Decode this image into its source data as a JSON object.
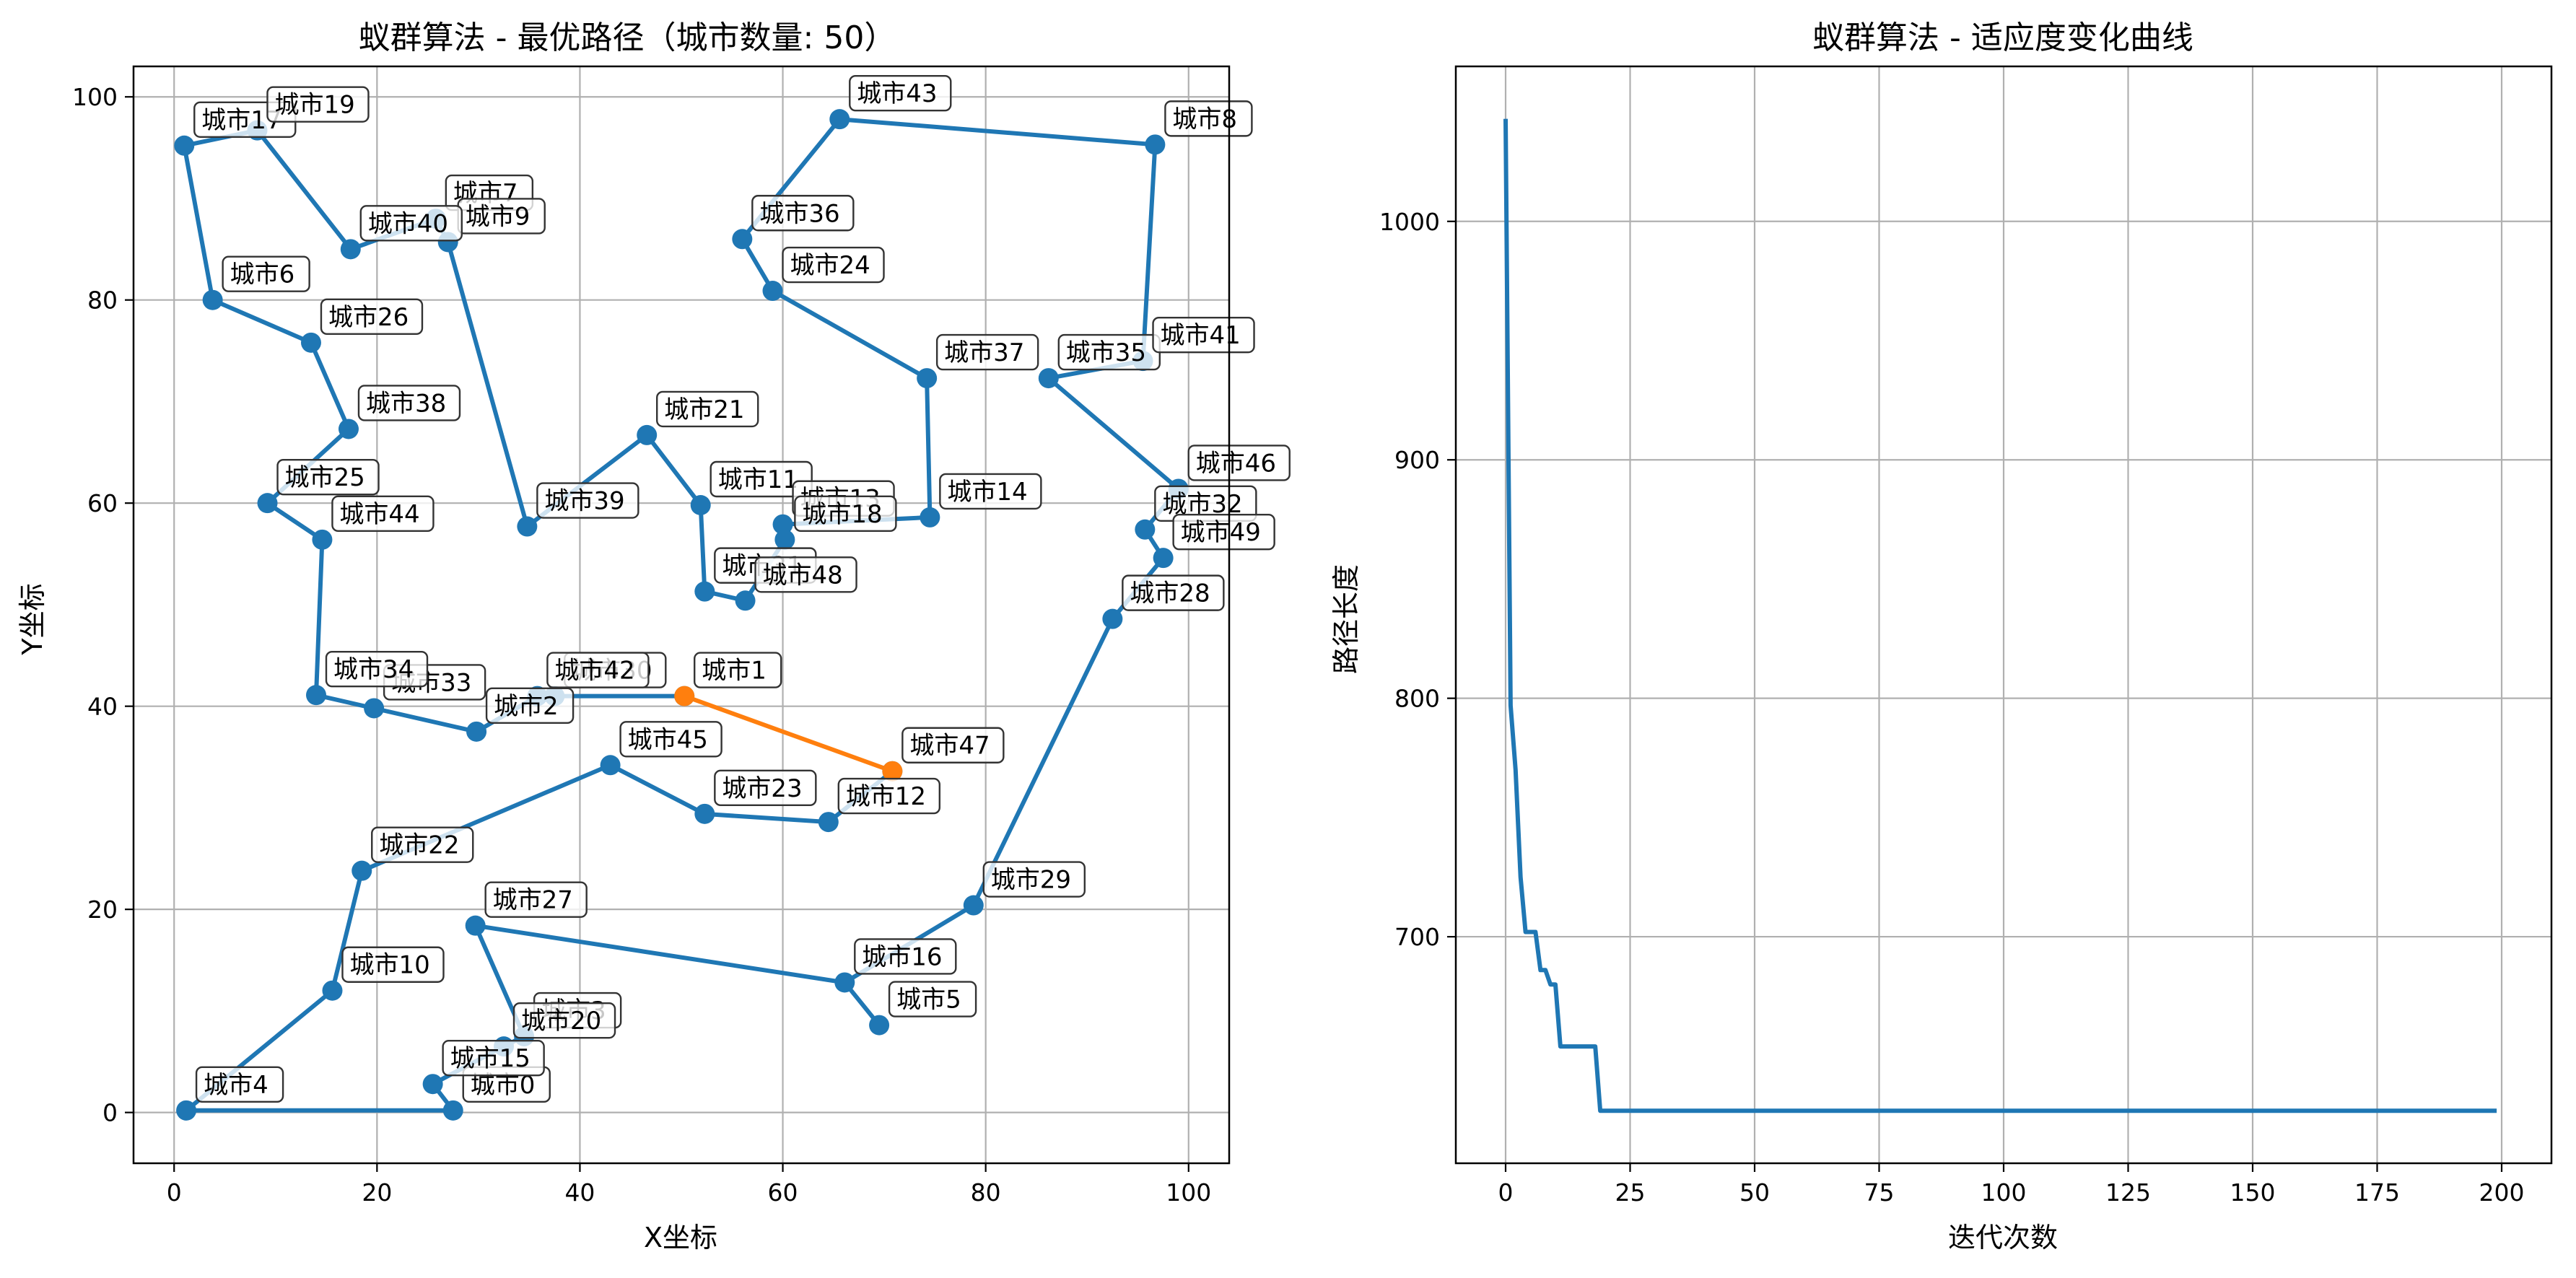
{
  "chart_data": [
    {
      "type": "line",
      "title": "蚁群算法 - 最优路径（城市数量: 50）",
      "xlabel": "X坐标",
      "ylabel": "Y坐标",
      "xlim": [
        -4,
        104
      ],
      "ylim": [
        -5,
        103
      ],
      "xticks": [
        0,
        20,
        40,
        60,
        80,
        100
      ],
      "yticks": [
        0,
        20,
        40,
        60,
        80,
        100
      ],
      "grid": true,
      "label_prefix": "城市",
      "route_color": "#1f77b4",
      "closing_color": "#ff7f0e",
      "cities": [
        {
          "id": 0,
          "x": 27.5,
          "y": 0.2
        },
        {
          "id": 1,
          "x": 50.3,
          "y": 41.0
        },
        {
          "id": 2,
          "x": 29.8,
          "y": 37.5
        },
        {
          "id": 3,
          "x": 34.5,
          "y": 7.5
        },
        {
          "id": 4,
          "x": 1.2,
          "y": 0.2
        },
        {
          "id": 5,
          "x": 69.5,
          "y": 8.6
        },
        {
          "id": 6,
          "x": 3.8,
          "y": 80.0
        },
        {
          "id": 7,
          "x": 25.8,
          "y": 88.0
        },
        {
          "id": 8,
          "x": 96.7,
          "y": 95.3
        },
        {
          "id": 9,
          "x": 27.0,
          "y": 85.7
        },
        {
          "id": 10,
          "x": 15.6,
          "y": 12.0
        },
        {
          "id": 11,
          "x": 51.9,
          "y": 59.8
        },
        {
          "id": 12,
          "x": 64.5,
          "y": 28.6
        },
        {
          "id": 13,
          "x": 60.0,
          "y": 57.9
        },
        {
          "id": 14,
          "x": 74.5,
          "y": 58.6
        },
        {
          "id": 15,
          "x": 25.5,
          "y": 2.8
        },
        {
          "id": 16,
          "x": 66.1,
          "y": 12.8
        },
        {
          "id": 17,
          "x": 1.0,
          "y": 95.2
        },
        {
          "id": 18,
          "x": 60.2,
          "y": 56.4
        },
        {
          "id": 19,
          "x": 8.2,
          "y": 96.7
        },
        {
          "id": 20,
          "x": 32.5,
          "y": 6.5
        },
        {
          "id": 21,
          "x": 46.6,
          "y": 66.7
        },
        {
          "id": 22,
          "x": 18.5,
          "y": 23.8
        },
        {
          "id": 23,
          "x": 52.3,
          "y": 29.4
        },
        {
          "id": 24,
          "x": 59.0,
          "y": 80.9
        },
        {
          "id": 25,
          "x": 9.2,
          "y": 60.0
        },
        {
          "id": 26,
          "x": 13.5,
          "y": 75.8
        },
        {
          "id": 27,
          "x": 29.7,
          "y": 18.4
        },
        {
          "id": 28,
          "x": 92.5,
          "y": 48.6
        },
        {
          "id": 29,
          "x": 78.8,
          "y": 20.4
        },
        {
          "id": 30,
          "x": 37.5,
          "y": 41.0
        },
        {
          "id": 31,
          "x": 52.3,
          "y": 51.3
        },
        {
          "id": 32,
          "x": 95.7,
          "y": 57.4
        },
        {
          "id": 33,
          "x": 19.7,
          "y": 39.8
        },
        {
          "id": 34,
          "x": 14.0,
          "y": 41.1
        },
        {
          "id": 35,
          "x": 86.2,
          "y": 72.3
        },
        {
          "id": 36,
          "x": 56.0,
          "y": 86.0
        },
        {
          "id": 37,
          "x": 74.2,
          "y": 72.3
        },
        {
          "id": 38,
          "x": 17.2,
          "y": 67.3
        },
        {
          "id": 39,
          "x": 34.8,
          "y": 57.7
        },
        {
          "id": 40,
          "x": 17.4,
          "y": 85.0
        },
        {
          "id": 41,
          "x": 95.5,
          "y": 74.0
        },
        {
          "id": 42,
          "x": 35.8,
          "y": 41.0
        },
        {
          "id": 43,
          "x": 65.6,
          "y": 97.8
        },
        {
          "id": 44,
          "x": 14.6,
          "y": 56.4
        },
        {
          "id": 45,
          "x": 43.0,
          "y": 34.2
        },
        {
          "id": 46,
          "x": 99.0,
          "y": 61.4
        },
        {
          "id": 47,
          "x": 70.8,
          "y": 33.6
        },
        {
          "id": 48,
          "x": 56.3,
          "y": 50.4
        },
        {
          "id": 49,
          "x": 97.5,
          "y": 54.6
        }
      ],
      "route": [
        1,
        30,
        42,
        2,
        33,
        34,
        44,
        25,
        38,
        26,
        6,
        17,
        19,
        40,
        7,
        9,
        39,
        21,
        11,
        31,
        48,
        18,
        13,
        14,
        37,
        24,
        36,
        43,
        8,
        41,
        35,
        46,
        32,
        49,
        28,
        29,
        16,
        5,
        16,
        27,
        3,
        20,
        15,
        0,
        4,
        10,
        22,
        45,
        23,
        12,
        47
      ],
      "closing_segment": [
        47,
        1
      ]
    },
    {
      "type": "line",
      "title": "蚁群算法 - 适应度变化曲线",
      "xlabel": "迭代次数",
      "ylabel": "路径长度",
      "xlim": [
        -10,
        210
      ],
      "ylim": [
        605,
        1065
      ],
      "xticks": [
        0,
        25,
        50,
        75,
        100,
        125,
        150,
        175,
        200
      ],
      "yticks": [
        700,
        800,
        900,
        1000
      ],
      "grid": true,
      "line_color": "#1f77b4",
      "x": [
        0,
        1,
        2,
        3,
        4,
        5,
        6,
        7,
        8,
        9,
        10,
        11,
        12,
        13,
        14,
        15,
        16,
        17,
        18,
        19,
        20,
        199
      ],
      "values": [
        1043,
        797,
        770,
        725,
        702,
        702,
        702,
        686,
        686,
        680,
        680,
        654,
        654,
        654,
        654,
        654,
        654,
        654,
        654,
        627,
        627,
        627
      ]
    }
  ]
}
